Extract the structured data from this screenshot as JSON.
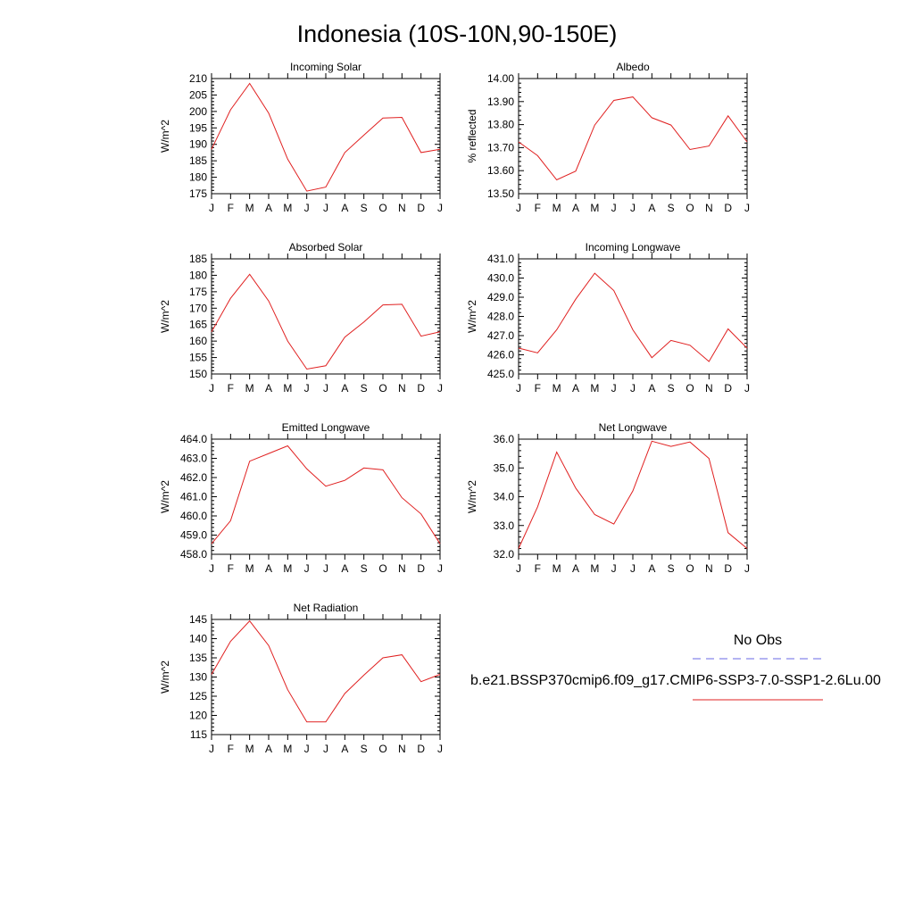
{
  "figure": {
    "title": "Indonesia (10S-10N,90-150E)",
    "legend": {
      "obs_label": "No Obs",
      "obs_color": "#6a6ae6",
      "model_label": "b.e21.BSSP370cmip6.f09_g17.CMIP6-SSP3-7.0-SSP1-2.6Lu.00",
      "model_color": "#e02020"
    }
  },
  "chart_data": [
    {
      "type": "line",
      "title": "Incoming Solar",
      "ylabel": "W/m^2",
      "x": [
        "J",
        "F",
        "M",
        "A",
        "M",
        "J",
        "J",
        "A",
        "S",
        "O",
        "N",
        "D",
        "J"
      ],
      "ylim": [
        175,
        210
      ],
      "yticks": [
        "175",
        "180",
        "185",
        "190",
        "195",
        "200",
        "205",
        "210"
      ],
      "series": [
        {
          "values": [
            188.5,
            200.5,
            208.5,
            199.5,
            185.5,
            175.8,
            177.0,
            187.5,
            192.8,
            198.0,
            198.2,
            187.5,
            188.5
          ]
        }
      ]
    },
    {
      "type": "line",
      "title": "Albedo",
      "ylabel": "% reflected",
      "x": [
        "J",
        "F",
        "M",
        "A",
        "M",
        "J",
        "J",
        "A",
        "S",
        "O",
        "N",
        "D",
        "J"
      ],
      "ylim": [
        13.5,
        14.0
      ],
      "yticks": [
        "13.50",
        "13.60",
        "13.70",
        "13.80",
        "13.90",
        "14.00"
      ],
      "series": [
        {
          "values": [
            13.725,
            13.665,
            13.56,
            13.598,
            13.798,
            13.905,
            13.92,
            13.83,
            13.798,
            13.692,
            13.707,
            13.838,
            13.725
          ]
        }
      ]
    },
    {
      "type": "line",
      "title": "Absorbed Solar",
      "ylabel": "W/m^2",
      "x": [
        "J",
        "F",
        "M",
        "A",
        "M",
        "J",
        "J",
        "A",
        "S",
        "O",
        "N",
        "D",
        "J"
      ],
      "ylim": [
        150,
        185
      ],
      "yticks": [
        "150",
        "155",
        "160",
        "165",
        "170",
        "175",
        "180",
        "185"
      ],
      "series": [
        {
          "values": [
            162.8,
            173.0,
            180.3,
            172.2,
            160.0,
            151.5,
            152.5,
            161.2,
            165.8,
            171.0,
            171.2,
            161.5,
            162.8
          ]
        }
      ]
    },
    {
      "type": "line",
      "title": "Incoming Longwave",
      "ylabel": "W/m^2",
      "x": [
        "J",
        "F",
        "M",
        "A",
        "M",
        "J",
        "J",
        "A",
        "S",
        "O",
        "N",
        "D",
        "J"
      ],
      "ylim": [
        425,
        431
      ],
      "yticks": [
        "425.0",
        "426.0",
        "427.0",
        "428.0",
        "429.0",
        "430.0",
        "431.0"
      ],
      "series": [
        {
          "values": [
            426.35,
            426.1,
            427.3,
            428.9,
            430.25,
            429.35,
            427.3,
            425.85,
            426.75,
            426.5,
            425.65,
            427.35,
            426.35
          ]
        }
      ]
    },
    {
      "type": "line",
      "title": "Emitted Longwave",
      "ylabel": "W/m^2",
      "x": [
        "J",
        "F",
        "M",
        "A",
        "M",
        "J",
        "J",
        "A",
        "S",
        "O",
        "N",
        "D",
        "J"
      ],
      "ylim": [
        458,
        464
      ],
      "yticks": [
        "458.0",
        "459.0",
        "460.0",
        "461.0",
        "462.0",
        "463.0",
        "464.0"
      ],
      "series": [
        {
          "values": [
            458.55,
            459.75,
            462.85,
            463.25,
            463.65,
            462.45,
            461.55,
            461.85,
            462.5,
            462.4,
            460.95,
            460.1,
            458.55
          ]
        }
      ]
    },
    {
      "type": "line",
      "title": "Net Longwave",
      "ylabel": "W/m^2",
      "x": [
        "J",
        "F",
        "M",
        "A",
        "M",
        "J",
        "J",
        "A",
        "S",
        "O",
        "N",
        "D",
        "J"
      ],
      "ylim": [
        32,
        36
      ],
      "yticks": [
        "32.0",
        "33.0",
        "34.0",
        "35.0",
        "36.0"
      ],
      "series": [
        {
          "values": [
            32.2,
            33.65,
            35.55,
            34.3,
            33.38,
            33.05,
            34.2,
            35.93,
            35.75,
            35.9,
            35.33,
            32.75,
            32.2
          ]
        }
      ]
    },
    {
      "type": "line",
      "title": "Net Radiation",
      "ylabel": "W/m^2",
      "x": [
        "J",
        "F",
        "M",
        "A",
        "M",
        "J",
        "J",
        "A",
        "S",
        "O",
        "N",
        "D",
        "J"
      ],
      "ylim": [
        115,
        145
      ],
      "yticks": [
        "115",
        "120",
        "125",
        "130",
        "135",
        "140",
        "145"
      ],
      "series": [
        {
          "values": [
            130.7,
            139.3,
            144.6,
            138.2,
            126.7,
            118.3,
            118.3,
            125.7,
            130.5,
            135.0,
            135.8,
            128.8,
            130.7
          ]
        }
      ]
    }
  ]
}
